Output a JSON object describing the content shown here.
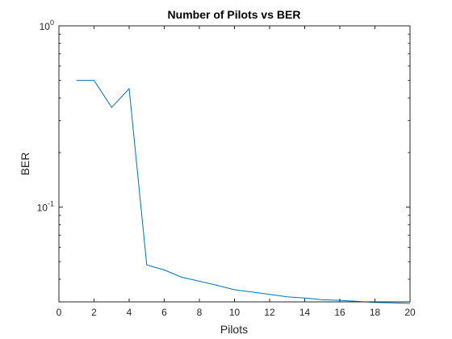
{
  "chart_data": {
    "type": "line",
    "title": "Number of Pilots vs BER",
    "xlabel": "Pilots",
    "ylabel": "BER",
    "xlim": [
      0,
      20
    ],
    "ylim": [
      0.03,
      1
    ],
    "yscale": "log",
    "grid": false,
    "x_ticks": [
      0,
      2,
      4,
      6,
      8,
      10,
      12,
      14,
      16,
      18,
      20
    ],
    "x_tick_labels": [
      "0",
      "2",
      "4",
      "6",
      "8",
      "10",
      "12",
      "14",
      "16",
      "18",
      "20"
    ],
    "y_ticks": [
      0.1,
      1
    ],
    "y_tick_labels": [
      {
        "base": "10",
        "exp": "-1"
      },
      {
        "base": "10",
        "exp": "0"
      }
    ],
    "series": [
      {
        "color": "#0072bd",
        "x": [
          1,
          2,
          3,
          4,
          5,
          6,
          7,
          8,
          9,
          10,
          11,
          12,
          13,
          14,
          15,
          16,
          17,
          18,
          19,
          20
        ],
        "y": [
          0.5,
          0.5,
          0.355,
          0.45,
          0.048,
          0.045,
          0.041,
          0.039,
          0.037,
          0.035,
          0.034,
          0.033,
          0.032,
          0.0315,
          0.0308,
          0.0306,
          0.0302,
          0.0298,
          0.0296,
          0.0294
        ]
      }
    ]
  }
}
